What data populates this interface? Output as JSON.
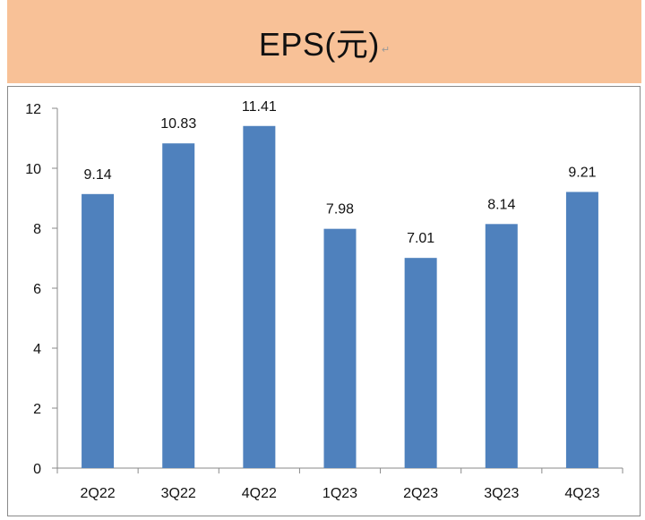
{
  "header": {
    "title": "EPS(元)",
    "return_mark": "↵"
  },
  "colors": {
    "header_bg": "#f8c197",
    "bar": "#4f81bd",
    "axis": "#8a8a8a"
  },
  "chart_data": {
    "type": "bar",
    "title": "EPS(元)",
    "categories": [
      "2Q22",
      "3Q22",
      "4Q22",
      "1Q23",
      "2Q23",
      "3Q23",
      "4Q23"
    ],
    "values": [
      9.14,
      10.83,
      11.41,
      7.98,
      7.01,
      8.14,
      9.21
    ],
    "value_labels": [
      "9.14",
      "10.83",
      "11.41",
      "7.98",
      "7.01",
      "8.14",
      "9.21"
    ],
    "xlabel": "",
    "ylabel": "",
    "ylim": [
      0,
      12
    ],
    "yticks": [
      0,
      2,
      4,
      6,
      8,
      10,
      12
    ],
    "grid": false,
    "legend": "none"
  }
}
